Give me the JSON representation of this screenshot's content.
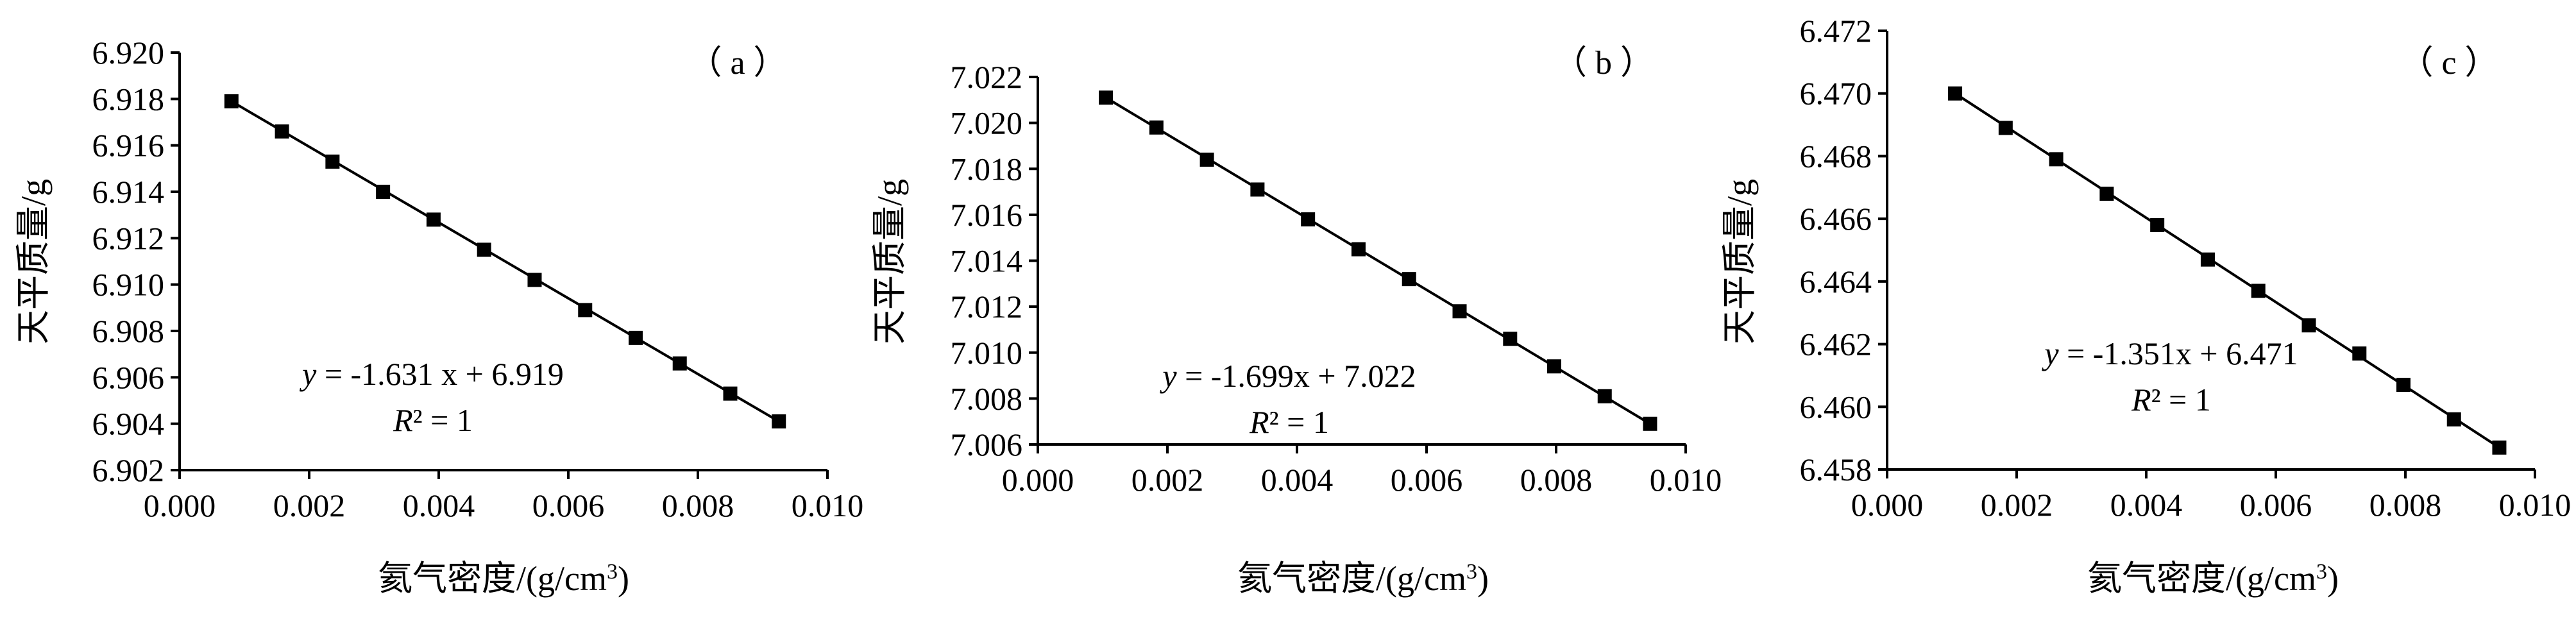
{
  "chart_data": [
    {
      "type": "scatter",
      "panel_label": "（ a ）",
      "xlabel": "氦气密度/(g/cm",
      "xlabel_sup": "3",
      "xlabel_end": ")",
      "ylabel": "天平质量/g",
      "xlim": [
        0.0,
        0.01
      ],
      "ylim": [
        6.902,
        6.92
      ],
      "xticks": [
        "0.000",
        "0.002",
        "0.004",
        "0.006",
        "0.008",
        "0.010"
      ],
      "yticks": [
        "6.902",
        "6.904",
        "6.906",
        "6.908",
        "6.910",
        "6.912",
        "6.914",
        "6.916",
        "6.918",
        "6.920"
      ],
      "grid": false,
      "series": [
        {
          "x": [
            0.0008,
            0.00158,
            0.00236,
            0.00314,
            0.00392,
            0.0047,
            0.00548,
            0.00626,
            0.00704,
            0.00772,
            0.0085,
            0.00925
          ],
          "y": [
            6.9179,
            6.9166,
            6.9153,
            6.914,
            6.9128,
            6.9115,
            6.9102,
            6.9089,
            6.9077,
            6.9066,
            6.9053,
            6.9041
          ]
        }
      ],
      "fit": {
        "slope": -1.631,
        "intercept": 6.919
      },
      "equation": {
        "y": "y",
        "rest": " = -1.631 x + 6.919"
      },
      "r2": {
        "r": "R",
        "rest": "² = 1"
      }
    },
    {
      "type": "scatter",
      "panel_label": "（ b ）",
      "xlabel": "氦气密度/(g/cm",
      "xlabel_sup": "3",
      "xlabel_end": ")",
      "ylabel": "天平质量/g",
      "xlim": [
        0.0,
        0.01
      ],
      "ylim": [
        7.006,
        7.022
      ],
      "xticks": [
        "0.000",
        "0.002",
        "0.004",
        "0.006",
        "0.008",
        "0.010"
      ],
      "yticks": [
        "7.006",
        "7.008",
        "7.010",
        "7.012",
        "7.014",
        "7.016",
        "7.018",
        "7.020",
        "7.022"
      ],
      "grid": false,
      "series": [
        {
          "x": [
            0.00105,
            0.00183,
            0.00261,
            0.00339,
            0.00417,
            0.00495,
            0.00573,
            0.00651,
            0.00729,
            0.00797,
            0.00875,
            0.00945
          ],
          "y": [
            7.0211,
            7.0198,
            7.0184,
            7.0171,
            7.0158,
            7.0145,
            7.0132,
            7.0118,
            7.0106,
            7.0094,
            7.0081,
            7.0069
          ]
        }
      ],
      "fit": {
        "slope": -1.699,
        "intercept": 7.022
      },
      "equation": {
        "y": "y",
        "rest": " = -1.699x + 7.022"
      },
      "r2": {
        "r": "R",
        "rest": "² = 1"
      }
    },
    {
      "type": "scatter",
      "panel_label": "（ c ）",
      "xlabel": "氦气密度/(g/cm",
      "xlabel_sup": "3",
      "xlabel_end": ")",
      "ylabel": "天平质量/g",
      "xlim": [
        0.0,
        0.01
      ],
      "ylim": [
        6.458,
        6.472
      ],
      "xticks": [
        "0.000",
        "0.002",
        "0.004",
        "0.006",
        "0.008",
        "0.010"
      ],
      "yticks": [
        "6.458",
        "6.460",
        "6.462",
        "6.464",
        "6.466",
        "6.468",
        "6.470",
        "6.472"
      ],
      "grid": false,
      "series": [
        {
          "x": [
            0.00105,
            0.00183,
            0.00261,
            0.00339,
            0.00417,
            0.00495,
            0.00573,
            0.00651,
            0.00729,
            0.00797,
            0.00875,
            0.00945
          ],
          "y": [
            6.47,
            6.4689,
            6.4679,
            6.4668,
            6.4658,
            6.4647,
            6.4637,
            6.4626,
            6.4617,
            6.4607,
            6.4596,
            6.4587
          ]
        }
      ],
      "fit": {
        "slope": -1.351,
        "intercept": 6.471
      },
      "equation": {
        "y": "y",
        "rest": " = -1.351x + 6.471"
      },
      "r2": {
        "r": "R",
        "rest": "² = 1"
      }
    }
  ]
}
